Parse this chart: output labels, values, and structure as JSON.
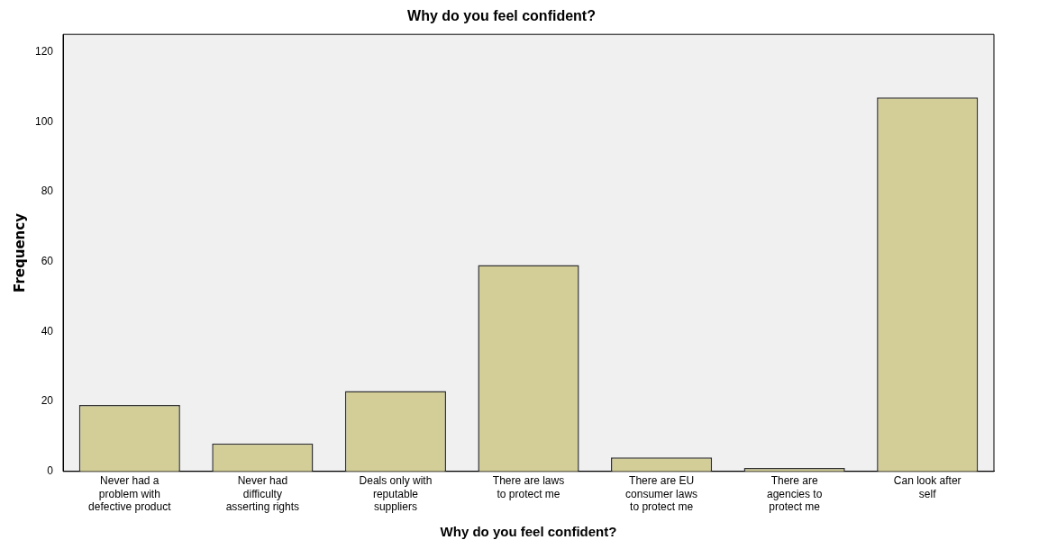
{
  "chart_data": {
    "type": "bar",
    "title": "Why do you feel confident?",
    "xlabel": "Why do you feel confident?",
    "ylabel": "Frequency",
    "categories": [
      "Never had a problem with defective product",
      "Never had difficulty asserting rights",
      "Deals only with reputable suppliers",
      "There are laws to protect me",
      "There are EU consumer laws to protect me",
      "There are agencies to protect me",
      "Can look after self"
    ],
    "values": [
      19,
      8,
      23,
      59,
      4,
      1,
      107
    ],
    "color": "#d3ce97",
    "ylim": [
      0,
      125
    ],
    "yticks": [
      0,
      20,
      40,
      60,
      80,
      100,
      120
    ],
    "grid": false,
    "legend": false
  }
}
